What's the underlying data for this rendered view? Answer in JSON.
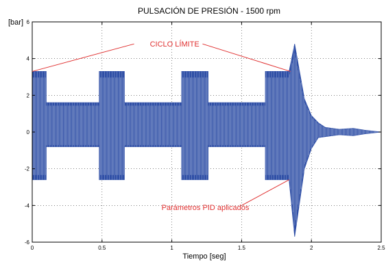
{
  "chart_data": {
    "type": "line",
    "title": "PULSACIÓN DE PRESIÓN  - 1500 rpm",
    "xlabel": "Tiempo [seg]",
    "ylabel": "[bar]",
    "xlim": [
      0,
      2.5
    ],
    "ylim": [
      -6,
      6
    ],
    "xticks": [
      0,
      0.5,
      1,
      1.5,
      2,
      2.5
    ],
    "xtick_labels": [
      "0",
      "0.5",
      "1",
      "1.5",
      "2",
      "2.5"
    ],
    "yticks": [
      -6,
      -4,
      -2,
      0,
      2,
      4,
      6
    ],
    "ytick_labels": [
      "-6",
      "-4",
      "-2",
      "0",
      "2",
      "4",
      "6"
    ],
    "grid": true,
    "series": [
      {
        "color": "#2f4fa6",
        "envelope_points": [
          {
            "t": 0.0,
            "upper": 3.3,
            "lower": -2.6
          },
          {
            "t": 0.1,
            "upper": 3.3,
            "lower": -2.6
          },
          {
            "t": 0.1,
            "upper": 1.6,
            "lower": -0.8
          },
          {
            "t": 0.48,
            "upper": 1.6,
            "lower": -0.8
          },
          {
            "t": 0.48,
            "upper": 3.3,
            "lower": -2.6
          },
          {
            "t": 0.66,
            "upper": 3.3,
            "lower": -2.6
          },
          {
            "t": 0.66,
            "upper": 1.6,
            "lower": -0.8
          },
          {
            "t": 1.07,
            "upper": 1.6,
            "lower": -0.8
          },
          {
            "t": 1.07,
            "upper": 3.3,
            "lower": -2.6
          },
          {
            "t": 1.26,
            "upper": 3.3,
            "lower": -2.6
          },
          {
            "t": 1.26,
            "upper": 1.6,
            "lower": -0.8
          },
          {
            "t": 1.67,
            "upper": 1.6,
            "lower": -0.8
          },
          {
            "t": 1.67,
            "upper": 3.3,
            "lower": -2.6
          },
          {
            "t": 1.84,
            "upper": 3.3,
            "lower": -2.6
          },
          {
            "t": 1.88,
            "upper": 4.8,
            "lower": -5.7
          },
          {
            "t": 1.95,
            "upper": 1.8,
            "lower": -2.0
          },
          {
            "t": 2.0,
            "upper": 0.9,
            "lower": -0.9
          },
          {
            "t": 2.05,
            "upper": 0.5,
            "lower": -0.3
          },
          {
            "t": 2.1,
            "upper": 0.25,
            "lower": -0.25
          },
          {
            "t": 2.2,
            "upper": 0.15,
            "lower": -0.15
          },
          {
            "t": 2.3,
            "upper": 0.2,
            "lower": -0.2
          },
          {
            "t": 2.38,
            "upper": 0.1,
            "lower": -0.1
          },
          {
            "t": 2.5,
            "upper": 0.0,
            "lower": 0.0
          }
        ]
      }
    ],
    "annotations": [
      {
        "id": "ciclo",
        "text": "CICLO LÍMITE",
        "color": "#e03030",
        "x": 1.02,
        "y": 4.8
      },
      {
        "id": "pid",
        "text": "Parámetros PID aplicados",
        "color": "#e03030",
        "x": 1.24,
        "y": -4.1
      }
    ],
    "arrows": [
      {
        "from": [
          0.73,
          4.8
        ],
        "to": [
          0.0,
          3.3
        ],
        "color": "#e03030"
      },
      {
        "from": [
          1.22,
          4.8
        ],
        "to": [
          1.85,
          3.3
        ],
        "color": "#e03030"
      },
      {
        "from": [
          1.5,
          -4.0
        ],
        "to": [
          1.84,
          -2.6
        ],
        "color": "#e03030"
      }
    ]
  }
}
